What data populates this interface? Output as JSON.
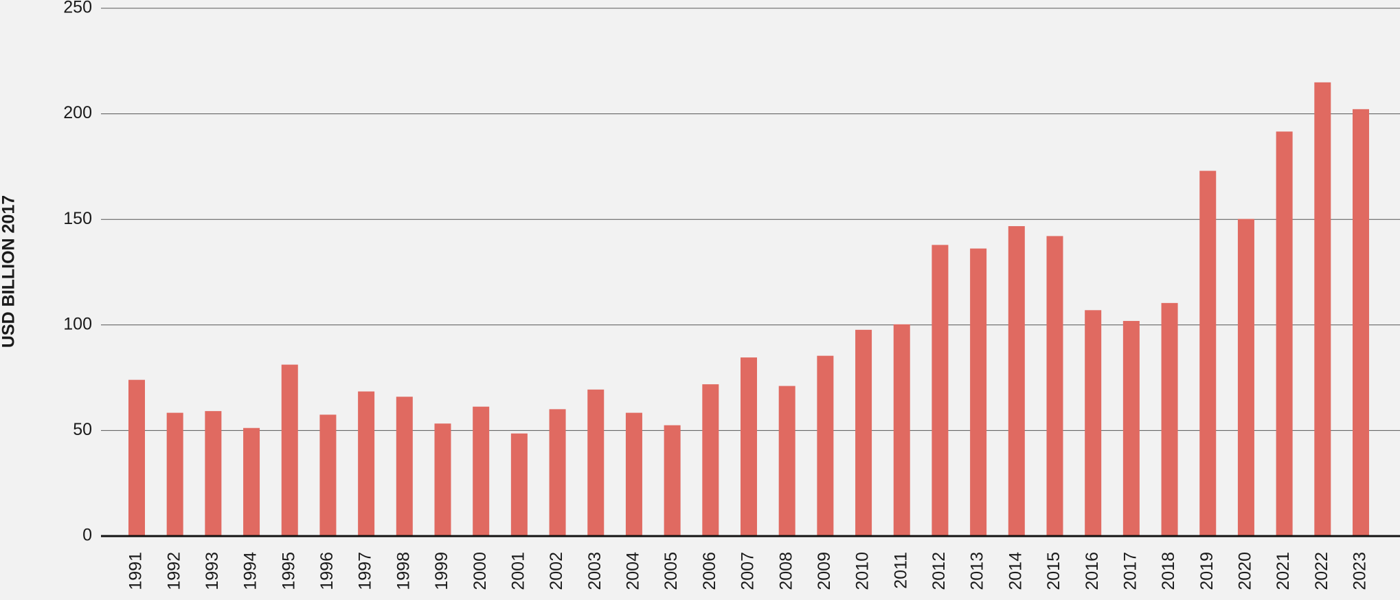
{
  "chart_data": {
    "type": "bar",
    "y_label": "USD BILLION 2017",
    "categories": [
      "1991",
      "1992",
      "1993",
      "1994",
      "1995",
      "1996",
      "1997",
      "1998",
      "1999",
      "2000",
      "2001",
      "2002",
      "2003",
      "2004",
      "2005",
      "2006",
      "2007",
      "2008",
      "2009",
      "2010",
      "2011",
      "2012",
      "2013",
      "2014",
      "2015",
      "2016",
      "2017",
      "2018",
      "2019",
      "2020",
      "2021",
      "2022",
      "2023"
    ],
    "values": [
      74.0,
      58.4,
      59.2,
      51.2,
      81.2,
      57.5,
      68.5,
      66.0,
      53.3,
      61.3,
      48.6,
      60.1,
      69.4,
      58.4,
      52.5,
      71.9,
      84.6,
      71.1,
      85.4,
      97.7,
      100.3,
      137.9,
      136.2,
      146.8,
      142.1,
      107.0,
      101.9,
      110.4,
      173.0,
      150.2,
      191.6,
      214.9,
      202.2
    ],
    "color": "#e06a61",
    "ylim": [
      0,
      250
    ],
    "yticks": [
      0,
      50,
      100,
      150,
      200,
      250
    ],
    "grid": true
  }
}
